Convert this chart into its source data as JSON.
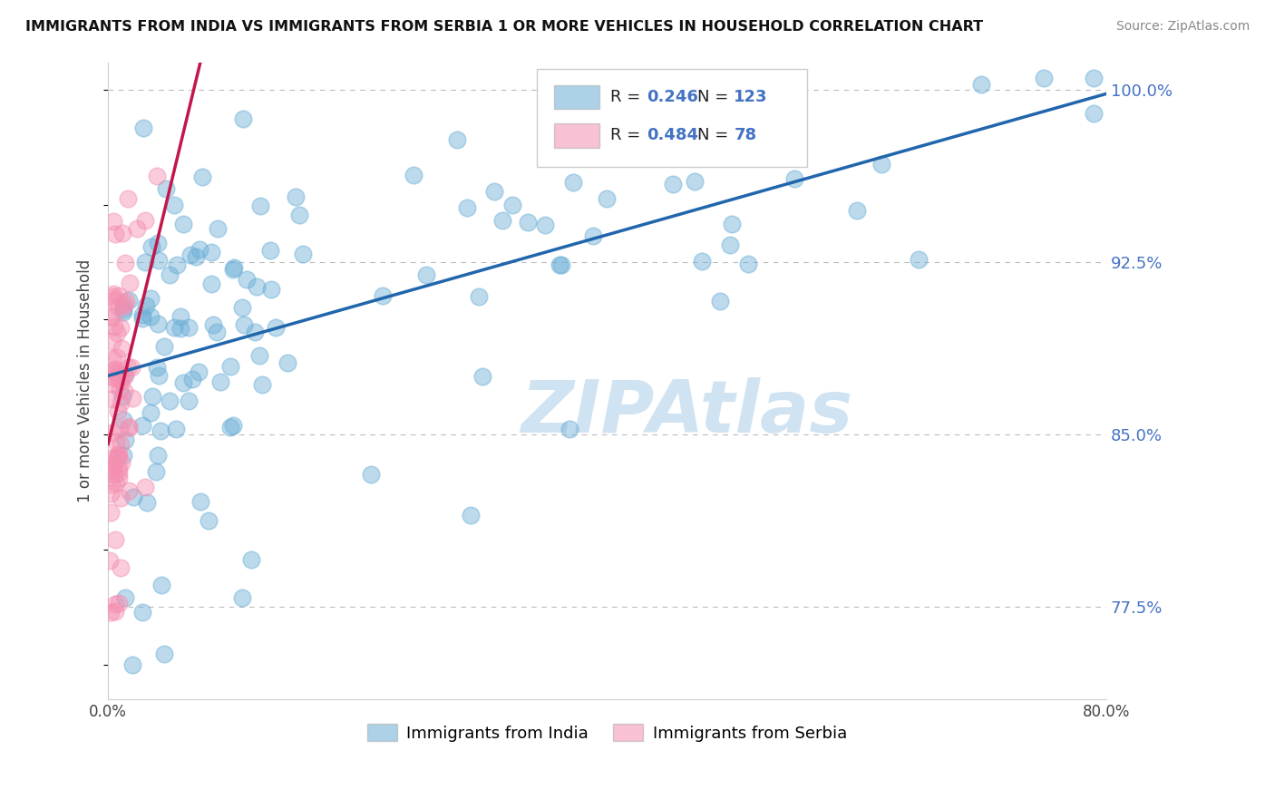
{
  "title": "IMMIGRANTS FROM INDIA VS IMMIGRANTS FROM SERBIA 1 OR MORE VEHICLES IN HOUSEHOLD CORRELATION CHART",
  "source": "Source: ZipAtlas.com",
  "ylabel": "1 or more Vehicles in Household",
  "xlim": [
    0.0,
    0.8
  ],
  "ylim": [
    0.735,
    1.012
  ],
  "yticks": [
    0.775,
    0.85,
    0.925,
    1.0
  ],
  "ytick_labels": [
    "77.5%",
    "85.0%",
    "92.5%",
    "100.0%"
  ],
  "india_R": 0.246,
  "india_N": 123,
  "serbia_R": 0.484,
  "serbia_N": 78,
  "india_color": "#6baed6",
  "serbia_color": "#f48fb1",
  "india_line_color": "#2166ac",
  "serbia_line_color": "#c2174b",
  "legend_india": "Immigrants from India",
  "legend_serbia": "Immigrants from Serbia",
  "watermark": "ZIPAtlas"
}
